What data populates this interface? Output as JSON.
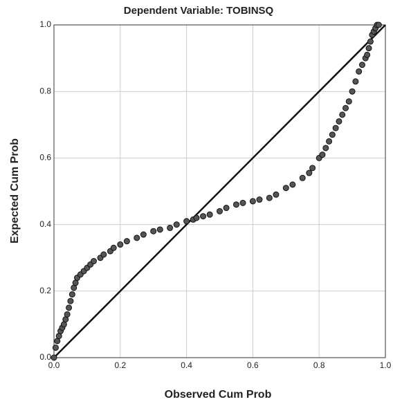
{
  "chart_data": {
    "type": "scatter",
    "title": "Dependent Variable: TOBINSQ",
    "x_label": "Observed Cum Prob",
    "y_label": "Expected Cum Prob",
    "x": [
      0.0,
      0.005,
      0.01,
      0.015,
      0.02,
      0.025,
      0.03,
      0.035,
      0.04,
      0.045,
      0.05,
      0.055,
      0.06,
      0.065,
      0.07,
      0.08,
      0.09,
      0.1,
      0.11,
      0.12,
      0.14,
      0.15,
      0.17,
      0.18,
      0.2,
      0.22,
      0.25,
      0.27,
      0.3,
      0.32,
      0.35,
      0.37,
      0.4,
      0.42,
      0.43,
      0.45,
      0.47,
      0.5,
      0.52,
      0.55,
      0.57,
      0.6,
      0.62,
      0.65,
      0.67,
      0.7,
      0.72,
      0.75,
      0.77,
      0.78,
      0.8,
      0.81,
      0.82,
      0.83,
      0.84,
      0.85,
      0.86,
      0.87,
      0.88,
      0.89,
      0.9,
      0.91,
      0.92,
      0.93,
      0.94,
      0.945,
      0.95,
      0.955,
      0.96,
      0.965,
      0.97,
      0.975,
      0.98
    ],
    "values": [
      0.0,
      0.03,
      0.05,
      0.065,
      0.08,
      0.09,
      0.1,
      0.115,
      0.13,
      0.15,
      0.17,
      0.19,
      0.21,
      0.225,
      0.24,
      0.25,
      0.26,
      0.27,
      0.28,
      0.29,
      0.3,
      0.31,
      0.32,
      0.33,
      0.34,
      0.35,
      0.36,
      0.37,
      0.38,
      0.385,
      0.39,
      0.4,
      0.41,
      0.415,
      0.42,
      0.425,
      0.43,
      0.44,
      0.45,
      0.46,
      0.465,
      0.47,
      0.475,
      0.48,
      0.49,
      0.51,
      0.52,
      0.54,
      0.555,
      0.57,
      0.6,
      0.61,
      0.63,
      0.65,
      0.67,
      0.69,
      0.71,
      0.73,
      0.75,
      0.77,
      0.8,
      0.83,
      0.86,
      0.88,
      0.9,
      0.91,
      0.93,
      0.95,
      0.97,
      0.98,
      0.99,
      1.0,
      1.0
    ],
    "color": "#555555",
    "xlim": [
      0,
      1
    ],
    "ylim": [
      0,
      1
    ],
    "xticks": [
      {
        "value": 0,
        "label": "0.0"
      },
      0.2,
      0.4,
      0.6,
      0.8,
      {
        "value": 1,
        "label": "1.0"
      }
    ],
    "yticks": [
      {
        "value": 0,
        "label": "0.0"
      },
      0.2,
      0.4,
      0.6,
      0.8,
      {
        "value": 1,
        "label": "1.0"
      }
    ],
    "grid": true
  }
}
